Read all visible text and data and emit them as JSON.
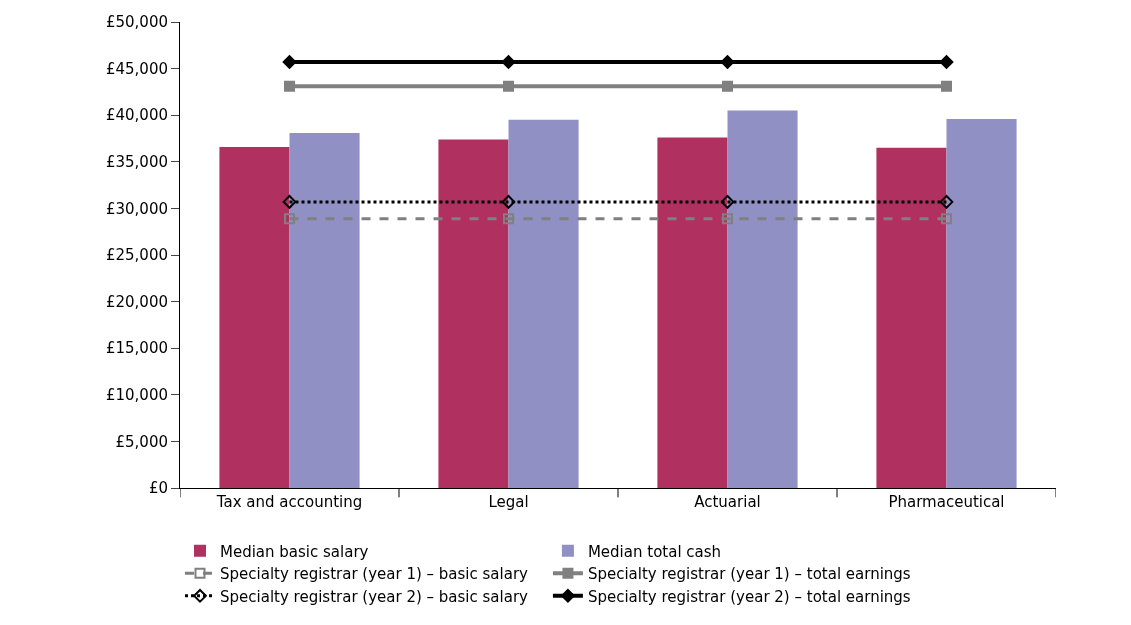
{
  "chart_data": {
    "type": "bar",
    "categories": [
      "Tax and accounting",
      "Legal",
      "Actuarial",
      "Pharmaceutical"
    ],
    "ylim": [
      0,
      50000
    ],
    "yticks": [
      {
        "value": 0,
        "label": "£0"
      },
      {
        "value": 5000,
        "label": "£5,000"
      },
      {
        "value": 10000,
        "label": "£10,000"
      },
      {
        "value": 15000,
        "label": "£15,000"
      },
      {
        "value": 20000,
        "label": "£20,000"
      },
      {
        "value": 25000,
        "label": "£25,000"
      },
      {
        "value": 30000,
        "label": "£30,000"
      },
      {
        "value": 35000,
        "label": "£35,000"
      },
      {
        "value": 40000,
        "label": "£40,000"
      },
      {
        "value": 45000,
        "label": "£45,000"
      },
      {
        "value": 50000,
        "label": "£50,000"
      }
    ],
    "legend": "bottom",
    "series": [
      {
        "name": "Median basic salary",
        "color": "#b03060",
        "values": [
          36600,
          37400,
          37600,
          36500
        ]
      },
      {
        "name": "Median total cash",
        "color": "#9090c4",
        "values": [
          38100,
          39500,
          40500,
          39600
        ]
      },
      {
        "name": "Specialty registrar (year 1) – basic salary",
        "type": "line",
        "color": "#808080",
        "line_style": "dashed",
        "marker": "square-open",
        "values": [
          28900,
          28900,
          28900,
          28900
        ]
      },
      {
        "name": "Specialty registrar (year 1) – total earnings",
        "type": "line",
        "color": "#808080",
        "line_style": "solid",
        "marker": "square",
        "values": [
          43100,
          43100,
          43100,
          43100
        ]
      },
      {
        "name": "Specialty registrar (year 2) – basic salary",
        "type": "line",
        "color": "#000000",
        "line_style": "dotted",
        "marker": "diamond-open",
        "values": [
          30700,
          30700,
          30700,
          30700
        ]
      },
      {
        "name": "Specialty registrar (year 2) – total earnings",
        "type": "line",
        "color": "#000000",
        "line_style": "solid",
        "marker": "diamond",
        "values": [
          45700,
          45700,
          45700,
          45700
        ]
      }
    ]
  }
}
